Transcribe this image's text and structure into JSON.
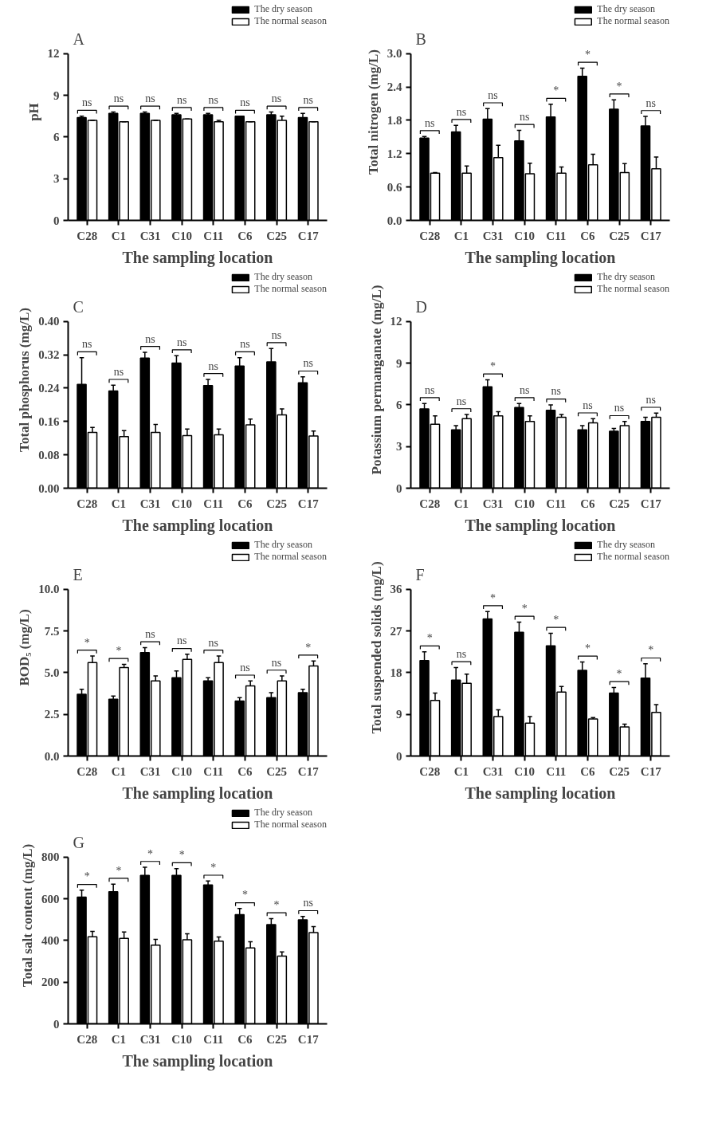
{
  "chart_data": [
    {
      "type": "bar",
      "title": "A",
      "xlabel": "The sampling location",
      "ylabel": "pH",
      "categories": [
        "C28",
        "C1",
        "C31",
        "C10",
        "C11",
        "C6",
        "C25",
        "C17"
      ],
      "ylim": [
        0,
        12
      ],
      "yticks": [
        0,
        3,
        6,
        9,
        12
      ],
      "legend": "top right",
      "series": [
        {
          "name": "The dry season",
          "color": "#000000",
          "values": [
            7.4,
            7.7,
            7.7,
            7.6,
            7.6,
            7.5,
            7.6,
            7.4
          ],
          "errors": [
            [
              7.4,
              7.5
            ],
            [
              7.7,
              7.8
            ],
            [
              7.7,
              7.8
            ],
            [
              7.6,
              7.7
            ],
            [
              7.6,
              7.7
            ],
            [
              7.5,
              7.5
            ],
            [
              7.6,
              7.8
            ],
            [
              7.4,
              7.7
            ]
          ]
        },
        {
          "name": "The normal season",
          "color": "#ffffff",
          "values": [
            7.2,
            7.1,
            7.2,
            7.3,
            7.1,
            7.1,
            7.2,
            7.1
          ],
          "errors": [
            [
              7.2,
              7.2
            ],
            [
              7.1,
              7.1
            ],
            [
              7.2,
              7.2
            ],
            [
              7.3,
              7.3
            ],
            [
              7.1,
              7.2
            ],
            [
              7.1,
              7.1
            ],
            [
              7.2,
              7.5
            ],
            [
              7.1,
              7.1
            ]
          ]
        }
      ],
      "annotations": [
        "ns",
        "ns",
        "ns",
        "ns",
        "ns",
        "ns",
        "ns",
        "ns"
      ]
    },
    {
      "type": "bar",
      "title": "B",
      "xlabel": "The sampling location",
      "ylabel": "Total nitrogen (mg/L)",
      "categories": [
        "C28",
        "C1",
        "C31",
        "C10",
        "C11",
        "C6",
        "C25",
        "C17"
      ],
      "ylim": [
        0,
        3.0
      ],
      "yticks": [
        {
          "value": 0,
          "label": "0.0"
        },
        {
          "value": 0.6,
          "label": "0.6"
        },
        {
          "value": 1.2,
          "label": "1.2"
        },
        {
          "value": 1.8,
          "label": "1.8"
        },
        {
          "value": 2.4,
          "label": "2.4"
        },
        {
          "value": 3.0,
          "label": "3.0"
        }
      ],
      "legend": "top right",
      "series": [
        {
          "name": "The dry season",
          "color": "#000000",
          "values": [
            1.48,
            1.59,
            1.82,
            1.43,
            1.86,
            2.59,
            2.0,
            1.7
          ],
          "errors": [
            [
              1.48,
              1.51
            ],
            [
              1.59,
              1.71
            ],
            [
              1.82,
              2.01
            ],
            [
              1.43,
              1.62
            ],
            [
              1.86,
              2.09
            ],
            [
              2.59,
              2.74
            ],
            [
              2.0,
              2.17
            ],
            [
              1.7,
              1.87
            ]
          ]
        },
        {
          "name": "The normal season",
          "color": "#ffffff",
          "values": [
            0.85,
            0.85,
            1.13,
            0.84,
            0.85,
            1.0,
            0.86,
            0.93
          ],
          "errors": [
            [
              0.85,
              0.86
            ],
            [
              0.85,
              0.98
            ],
            [
              1.13,
              1.35
            ],
            [
              0.84,
              1.03
            ],
            [
              0.85,
              0.96
            ],
            [
              1.0,
              1.19
            ],
            [
              0.86,
              1.02
            ],
            [
              0.93,
              1.14
            ]
          ]
        }
      ],
      "annotations": [
        "ns",
        "ns",
        "ns",
        "ns",
        "*",
        "*",
        "*",
        "ns"
      ]
    },
    {
      "type": "bar",
      "title": "C",
      "xlabel": "The sampling location",
      "ylabel": "Total phosphorus (mg/L)",
      "categories": [
        "C28",
        "C1",
        "C31",
        "C10",
        "C11",
        "C6",
        "C25",
        "C17"
      ],
      "ylim": [
        0,
        0.4
      ],
      "yticks": [
        {
          "value": 0,
          "label": "0.00"
        },
        {
          "value": 0.08,
          "label": "0.08"
        },
        {
          "value": 0.16,
          "label": "0.16"
        },
        {
          "value": 0.24,
          "label": "0.24"
        },
        {
          "value": 0.32,
          "label": "0.32"
        },
        {
          "value": 0.4,
          "label": "0.40"
        }
      ],
      "legend": "top right",
      "series": [
        {
          "name": "The dry season",
          "color": "#000000",
          "values": [
            0.249,
            0.233,
            0.312,
            0.3,
            0.246,
            0.293,
            0.303,
            0.253
          ],
          "errors": [
            [
              0.249,
              0.313
            ],
            [
              0.233,
              0.247
            ],
            [
              0.312,
              0.326
            ],
            [
              0.3,
              0.318
            ],
            [
              0.246,
              0.261
            ],
            [
              0.293,
              0.313
            ],
            [
              0.303,
              0.335
            ],
            [
              0.253,
              0.267
            ]
          ]
        },
        {
          "name": "The normal season",
          "color": "#ffffff",
          "values": [
            0.134,
            0.124,
            0.134,
            0.126,
            0.128,
            0.152,
            0.176,
            0.125
          ],
          "errors": [
            [
              0.134,
              0.146
            ],
            [
              0.124,
              0.138
            ],
            [
              0.134,
              0.153
            ],
            [
              0.126,
              0.142
            ],
            [
              0.128,
              0.142
            ],
            [
              0.152,
              0.166
            ],
            [
              0.176,
              0.19
            ],
            [
              0.125,
              0.137
            ]
          ]
        }
      ],
      "annotations": [
        "ns",
        "ns",
        "ns",
        "ns",
        "ns",
        "ns",
        "ns",
        "ns"
      ]
    },
    {
      "type": "bar",
      "title": "D",
      "xlabel": "The sampling location",
      "ylabel": "Potassium permanganate (mg/L)",
      "categories": [
        "C28",
        "C1",
        "C31",
        "C10",
        "C11",
        "C6",
        "C25",
        "C17"
      ],
      "ylim": [
        0,
        12
      ],
      "yticks": [
        0,
        3,
        6,
        9,
        12
      ],
      "legend": "top right",
      "series": [
        {
          "name": "The dry season",
          "color": "#000000",
          "values": [
            5.7,
            4.2,
            7.3,
            5.8,
            5.6,
            4.2,
            4.1,
            4.8
          ],
          "errors": [
            [
              5.7,
              6.1
            ],
            [
              4.2,
              4.5
            ],
            [
              7.3,
              7.8
            ],
            [
              5.8,
              6.1
            ],
            [
              5.6,
              6.0
            ],
            [
              4.2,
              4.5
            ],
            [
              4.1,
              4.3
            ],
            [
              4.8,
              5.1
            ]
          ]
        },
        {
          "name": "The normal season",
          "color": "#ffffff",
          "values": [
            4.6,
            5.0,
            5.2,
            4.8,
            5.1,
            4.7,
            4.5,
            5.1
          ],
          "errors": [
            [
              4.6,
              5.2
            ],
            [
              5.0,
              5.3
            ],
            [
              5.2,
              5.5
            ],
            [
              4.8,
              5.2
            ],
            [
              5.1,
              5.3
            ],
            [
              4.7,
              5.0
            ],
            [
              4.5,
              4.8
            ],
            [
              5.1,
              5.4
            ]
          ]
        }
      ],
      "annotations": [
        "ns",
        "ns",
        "*",
        "ns",
        "ns",
        "ns",
        "ns",
        "ns"
      ]
    },
    {
      "type": "bar",
      "title": "E",
      "xlabel": "The sampling location",
      "ylabel": "BOD₅ (mg/L)",
      "categories": [
        "C28",
        "C1",
        "C31",
        "C10",
        "C11",
        "C6",
        "C25",
        "C17"
      ],
      "ylim": [
        0,
        10
      ],
      "yticks": [
        {
          "value": 0,
          "label": "0.0"
        },
        {
          "value": 2.5,
          "label": "2.5"
        },
        {
          "value": 5,
          "label": "5.0"
        },
        {
          "value": 7.5,
          "label": "7.5"
        },
        {
          "value": 10,
          "label": "10.0"
        }
      ],
      "legend": "top right",
      "series": [
        {
          "name": "The dry season",
          "color": "#000000",
          "values": [
            3.7,
            3.4,
            6.2,
            4.7,
            4.5,
            3.3,
            3.5,
            3.8
          ],
          "errors": [
            [
              3.7,
              4.0
            ],
            [
              3.4,
              3.6
            ],
            [
              6.2,
              6.5
            ],
            [
              4.7,
              5.1
            ],
            [
              4.5,
              4.7
            ],
            [
              3.3,
              3.5
            ],
            [
              3.5,
              3.8
            ],
            [
              3.8,
              4.0
            ]
          ]
        },
        {
          "name": "The normal season",
          "color": "#ffffff",
          "values": [
            5.6,
            5.3,
            4.5,
            5.8,
            5.6,
            4.2,
            4.5,
            5.4
          ],
          "errors": [
            [
              5.6,
              6.0
            ],
            [
              5.3,
              5.5
            ],
            [
              4.5,
              4.8
            ],
            [
              5.8,
              6.1
            ],
            [
              5.6,
              6.0
            ],
            [
              4.2,
              4.5
            ],
            [
              4.5,
              4.8
            ],
            [
              5.4,
              5.7
            ]
          ]
        }
      ],
      "annotations": [
        "*",
        "*",
        "ns",
        "ns",
        "ns",
        "ns",
        "ns",
        "*"
      ]
    },
    {
      "type": "bar",
      "title": "F",
      "xlabel": "The sampling location",
      "ylabel": "Total suspended solids (mg/L)",
      "categories": [
        "C28",
        "C1",
        "C31",
        "C10",
        "C11",
        "C6",
        "C25",
        "C17"
      ],
      "ylim": [
        0,
        36
      ],
      "yticks": [
        0,
        9,
        18,
        27,
        36
      ],
      "legend": "top right",
      "series": [
        {
          "name": "The dry season",
          "color": "#000000",
          "values": [
            20.6,
            16.4,
            29.6,
            26.7,
            23.8,
            18.5,
            13.6,
            16.8
          ],
          "errors": [
            [
              20.6,
              22.5
            ],
            [
              16.4,
              19.1
            ],
            [
              29.6,
              31.2
            ],
            [
              26.7,
              28.9
            ],
            [
              23.8,
              26.5
            ],
            [
              18.5,
              20.3
            ],
            [
              13.6,
              14.8
            ],
            [
              16.8,
              19.9
            ]
          ]
        },
        {
          "name": "The normal season",
          "color": "#ffffff",
          "values": [
            12.0,
            15.7,
            8.5,
            7.1,
            13.8,
            8.0,
            6.3,
            9.4
          ],
          "errors": [
            [
              12.0,
              13.6
            ],
            [
              15.7,
              17.7
            ],
            [
              8.5,
              10.0
            ],
            [
              7.1,
              8.5
            ],
            [
              13.8,
              15.0
            ],
            [
              8.0,
              8.3
            ],
            [
              6.3,
              6.9
            ],
            [
              9.4,
              11.1
            ]
          ]
        }
      ],
      "annotations": [
        "*",
        "ns",
        "*",
        "*",
        "*",
        "*",
        "*",
        "*"
      ]
    },
    {
      "type": "bar",
      "title": "G",
      "xlabel": "The sampling location",
      "ylabel": "Total salt content (mg/L)",
      "categories": [
        "C28",
        "C1",
        "C31",
        "C10",
        "C11",
        "C6",
        "C25",
        "C17"
      ],
      "ylim": [
        0,
        800
      ],
      "yticks": [
        0,
        200,
        400,
        600,
        800
      ],
      "legend": "top right",
      "series": [
        {
          "name": "The dry season",
          "color": "#000000",
          "values": [
            608,
            634,
            712,
            712,
            666,
            524,
            476,
            499
          ],
          "errors": [
            [
              608,
              641
            ],
            [
              634,
              670
            ],
            [
              712,
              751
            ],
            [
              712,
              745
            ],
            [
              666,
              685
            ],
            [
              524,
              553
            ],
            [
              476,
              505
            ],
            [
              499,
              515
            ]
          ]
        },
        {
          "name": "The normal season",
          "color": "#ffffff",
          "values": [
            418,
            410,
            378,
            403,
            397,
            364,
            325,
            438
          ],
          "errors": [
            [
              418,
              444
            ],
            [
              410,
              441
            ],
            [
              378,
              405
            ],
            [
              403,
              432
            ],
            [
              397,
              417
            ],
            [
              364,
              394
            ],
            [
              325,
              345
            ],
            [
              438,
              466
            ]
          ]
        }
      ],
      "annotations": [
        "*",
        "*",
        "*",
        "*",
        "*",
        "*",
        "*",
        "ns"
      ]
    }
  ]
}
